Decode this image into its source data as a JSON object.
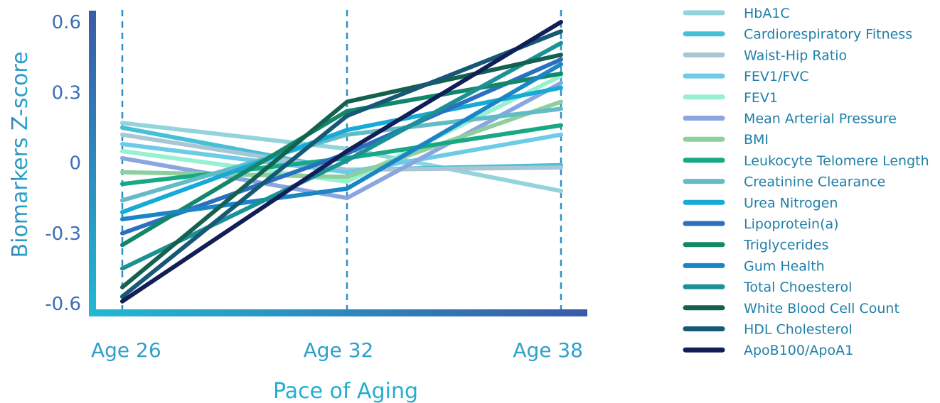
{
  "chart_data": {
    "type": "line",
    "x": [
      "Age 26",
      "Age 32",
      "Age 38"
    ],
    "xlabel": "Pace of Aging",
    "ylabel": "Biomarkers Z-score",
    "ylim": [
      -0.6,
      0.6
    ],
    "yticks": [
      "0.6",
      "0.3",
      "0",
      "-0.3",
      "-0.6"
    ],
    "ytick_values": [
      0.6,
      0.3,
      0,
      -0.3,
      -0.6
    ],
    "legend_position": "right",
    "vertical_gridlines": "dashed",
    "axis_gradient": [
      "#21b9d2",
      "#3a5aa8"
    ],
    "series": [
      {
        "name": "HbA1C",
        "color": "#93d3dc",
        "values": [
          0.17,
          0.06,
          -0.12
        ]
      },
      {
        "name": "Cardiorespiratory Fitness",
        "color": "#45c0d8",
        "values": [
          0.15,
          -0.03,
          -0.01
        ]
      },
      {
        "name": "Waist-Hip Ratio",
        "color": "#a9c7d3",
        "values": [
          0.12,
          -0.03,
          -0.02
        ]
      },
      {
        "name": "FEV1/FVC",
        "color": "#6dcbe6",
        "values": [
          0.08,
          -0.04,
          0.12
        ]
      },
      {
        "name": "FEV1",
        "color": "#96f0d2",
        "values": [
          0.05,
          -0.08,
          0.37
        ]
      },
      {
        "name": "Mean Arterial Pressure",
        "color": "#8aa6e0",
        "values": [
          0.02,
          -0.15,
          0.34
        ]
      },
      {
        "name": "BMI",
        "color": "#8ecf9e",
        "values": [
          -0.04,
          -0.06,
          0.26
        ]
      },
      {
        "name": "Leukocyte Telomere Length",
        "color": "#18a884",
        "values": [
          -0.09,
          0.02,
          0.16
        ]
      },
      {
        "name": "Creatinine Clearance",
        "color": "#62bcc6",
        "values": [
          -0.16,
          0.12,
          0.23
        ]
      },
      {
        "name": "Urea Nitrogen",
        "color": "#16aad6",
        "values": [
          -0.21,
          0.14,
          0.32
        ]
      },
      {
        "name": "Lipoprotein(a)",
        "color": "#2b6fc0",
        "values": [
          -0.3,
          0.04,
          0.44
        ]
      },
      {
        "name": "Triglycerides",
        "color": "#13876b",
        "values": [
          -0.35,
          0.22,
          0.38
        ]
      },
      {
        "name": "Gum Health",
        "color": "#1a86c6",
        "values": [
          -0.24,
          -0.11,
          0.42
        ]
      },
      {
        "name": "Total Choesterol",
        "color": "#1b9196",
        "values": [
          -0.45,
          0.01,
          0.51
        ]
      },
      {
        "name": "White Blood Cell Count",
        "color": "#146150",
        "values": [
          -0.53,
          0.26,
          0.46
        ]
      },
      {
        "name": "HDL Cholesterol",
        "color": "#165876",
        "values": [
          -0.57,
          0.2,
          0.56
        ]
      },
      {
        "name": "ApoB100/ApoA1",
        "color": "#121e58",
        "values": [
          -0.59,
          0.05,
          0.6
        ]
      }
    ]
  }
}
